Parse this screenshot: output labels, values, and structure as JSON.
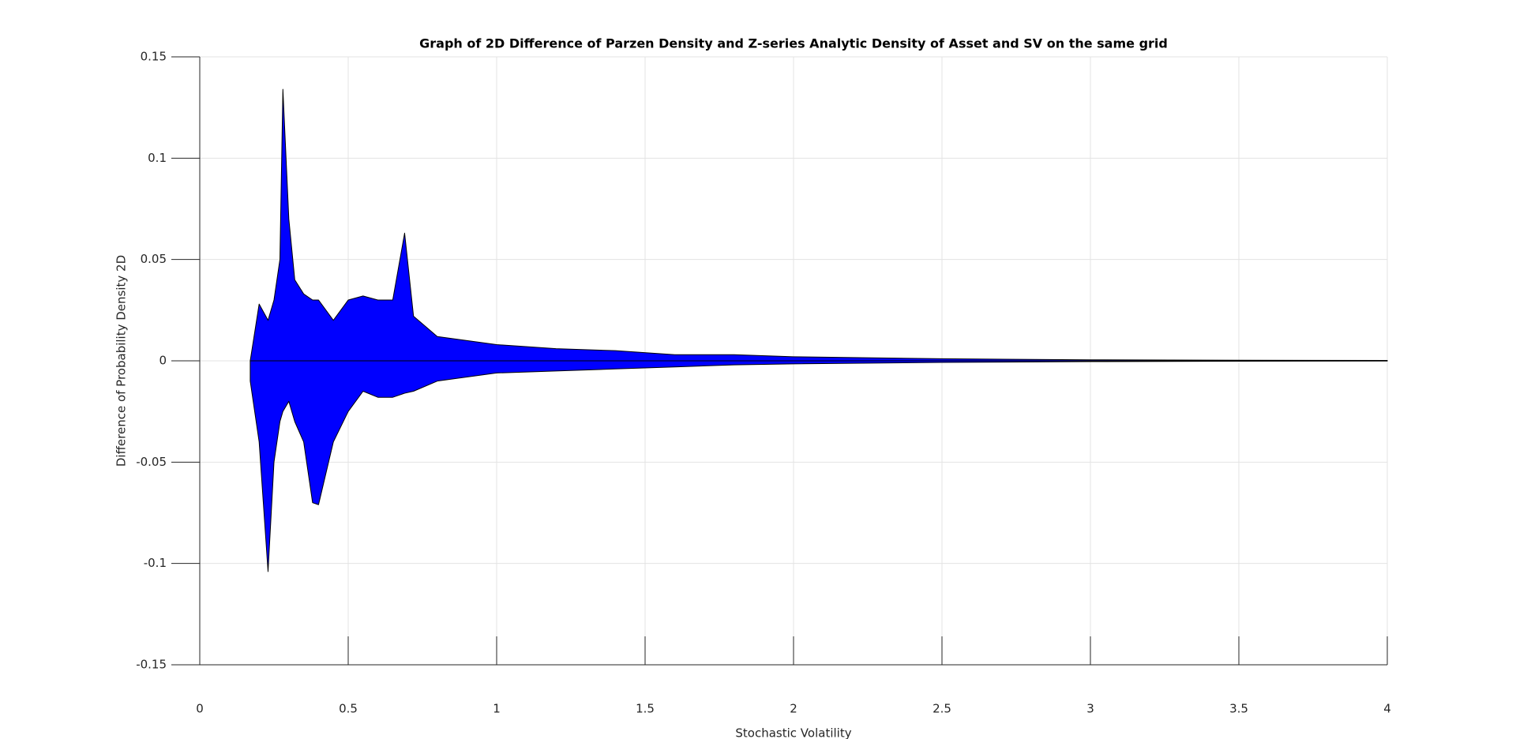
{
  "chart_data": {
    "type": "area",
    "title": "Graph of 2D Difference of Parzen Density and Z-series Analytic Density of Asset and SV on the same grid",
    "xlabel": "Stochastic Volatility",
    "ylabel": "Difference of Probability Density 2D",
    "x": [
      0.17,
      0.2,
      0.23,
      0.25,
      0.27,
      0.28,
      0.3,
      0.32,
      0.35,
      0.38,
      0.4,
      0.45,
      0.5,
      0.55,
      0.6,
      0.65,
      0.69,
      0.72,
      0.8,
      0.9,
      1.0,
      1.2,
      1.4,
      1.6,
      1.8,
      2.0,
      2.5,
      3.0,
      3.5,
      4.0
    ],
    "series": [
      {
        "color": "#0000ff",
        "values": [
          0,
          0.028,
          0.02,
          0.03,
          0.05,
          0.134,
          0.07,
          0.04,
          0.033,
          0.03,
          0.03,
          0.02,
          0.03,
          0.032,
          0.03,
          0.03,
          0.063,
          0.022,
          0.012,
          0.01,
          0.008,
          0.006,
          0.005,
          0.003,
          0.003,
          0.002,
          0.001,
          0.0005,
          0.0003,
          0.0002
        ]
      },
      {
        "color": "#0000ff",
        "values": [
          -0.01,
          -0.04,
          -0.104,
          -0.05,
          -0.03,
          -0.025,
          -0.02,
          -0.03,
          -0.04,
          -0.07,
          -0.071,
          -0.04,
          -0.025,
          -0.015,
          -0.018,
          -0.018,
          -0.016,
          -0.015,
          -0.01,
          -0.008,
          -0.006,
          -0.005,
          -0.004,
          -0.003,
          -0.002,
          -0.0015,
          -0.0008,
          -0.0004,
          -0.0002,
          -0.0001
        ]
      }
    ],
    "xlim": [
      0,
      4
    ],
    "xticks": [
      0,
      0.5,
      1,
      1.5,
      2,
      2.5,
      3,
      3.5,
      4
    ],
    "ylim": [
      -0.15,
      0.15
    ],
    "yticks": [
      -0.15,
      -0.1,
      -0.05,
      0,
      0.05,
      0.1,
      0.15
    ],
    "grid": true
  }
}
